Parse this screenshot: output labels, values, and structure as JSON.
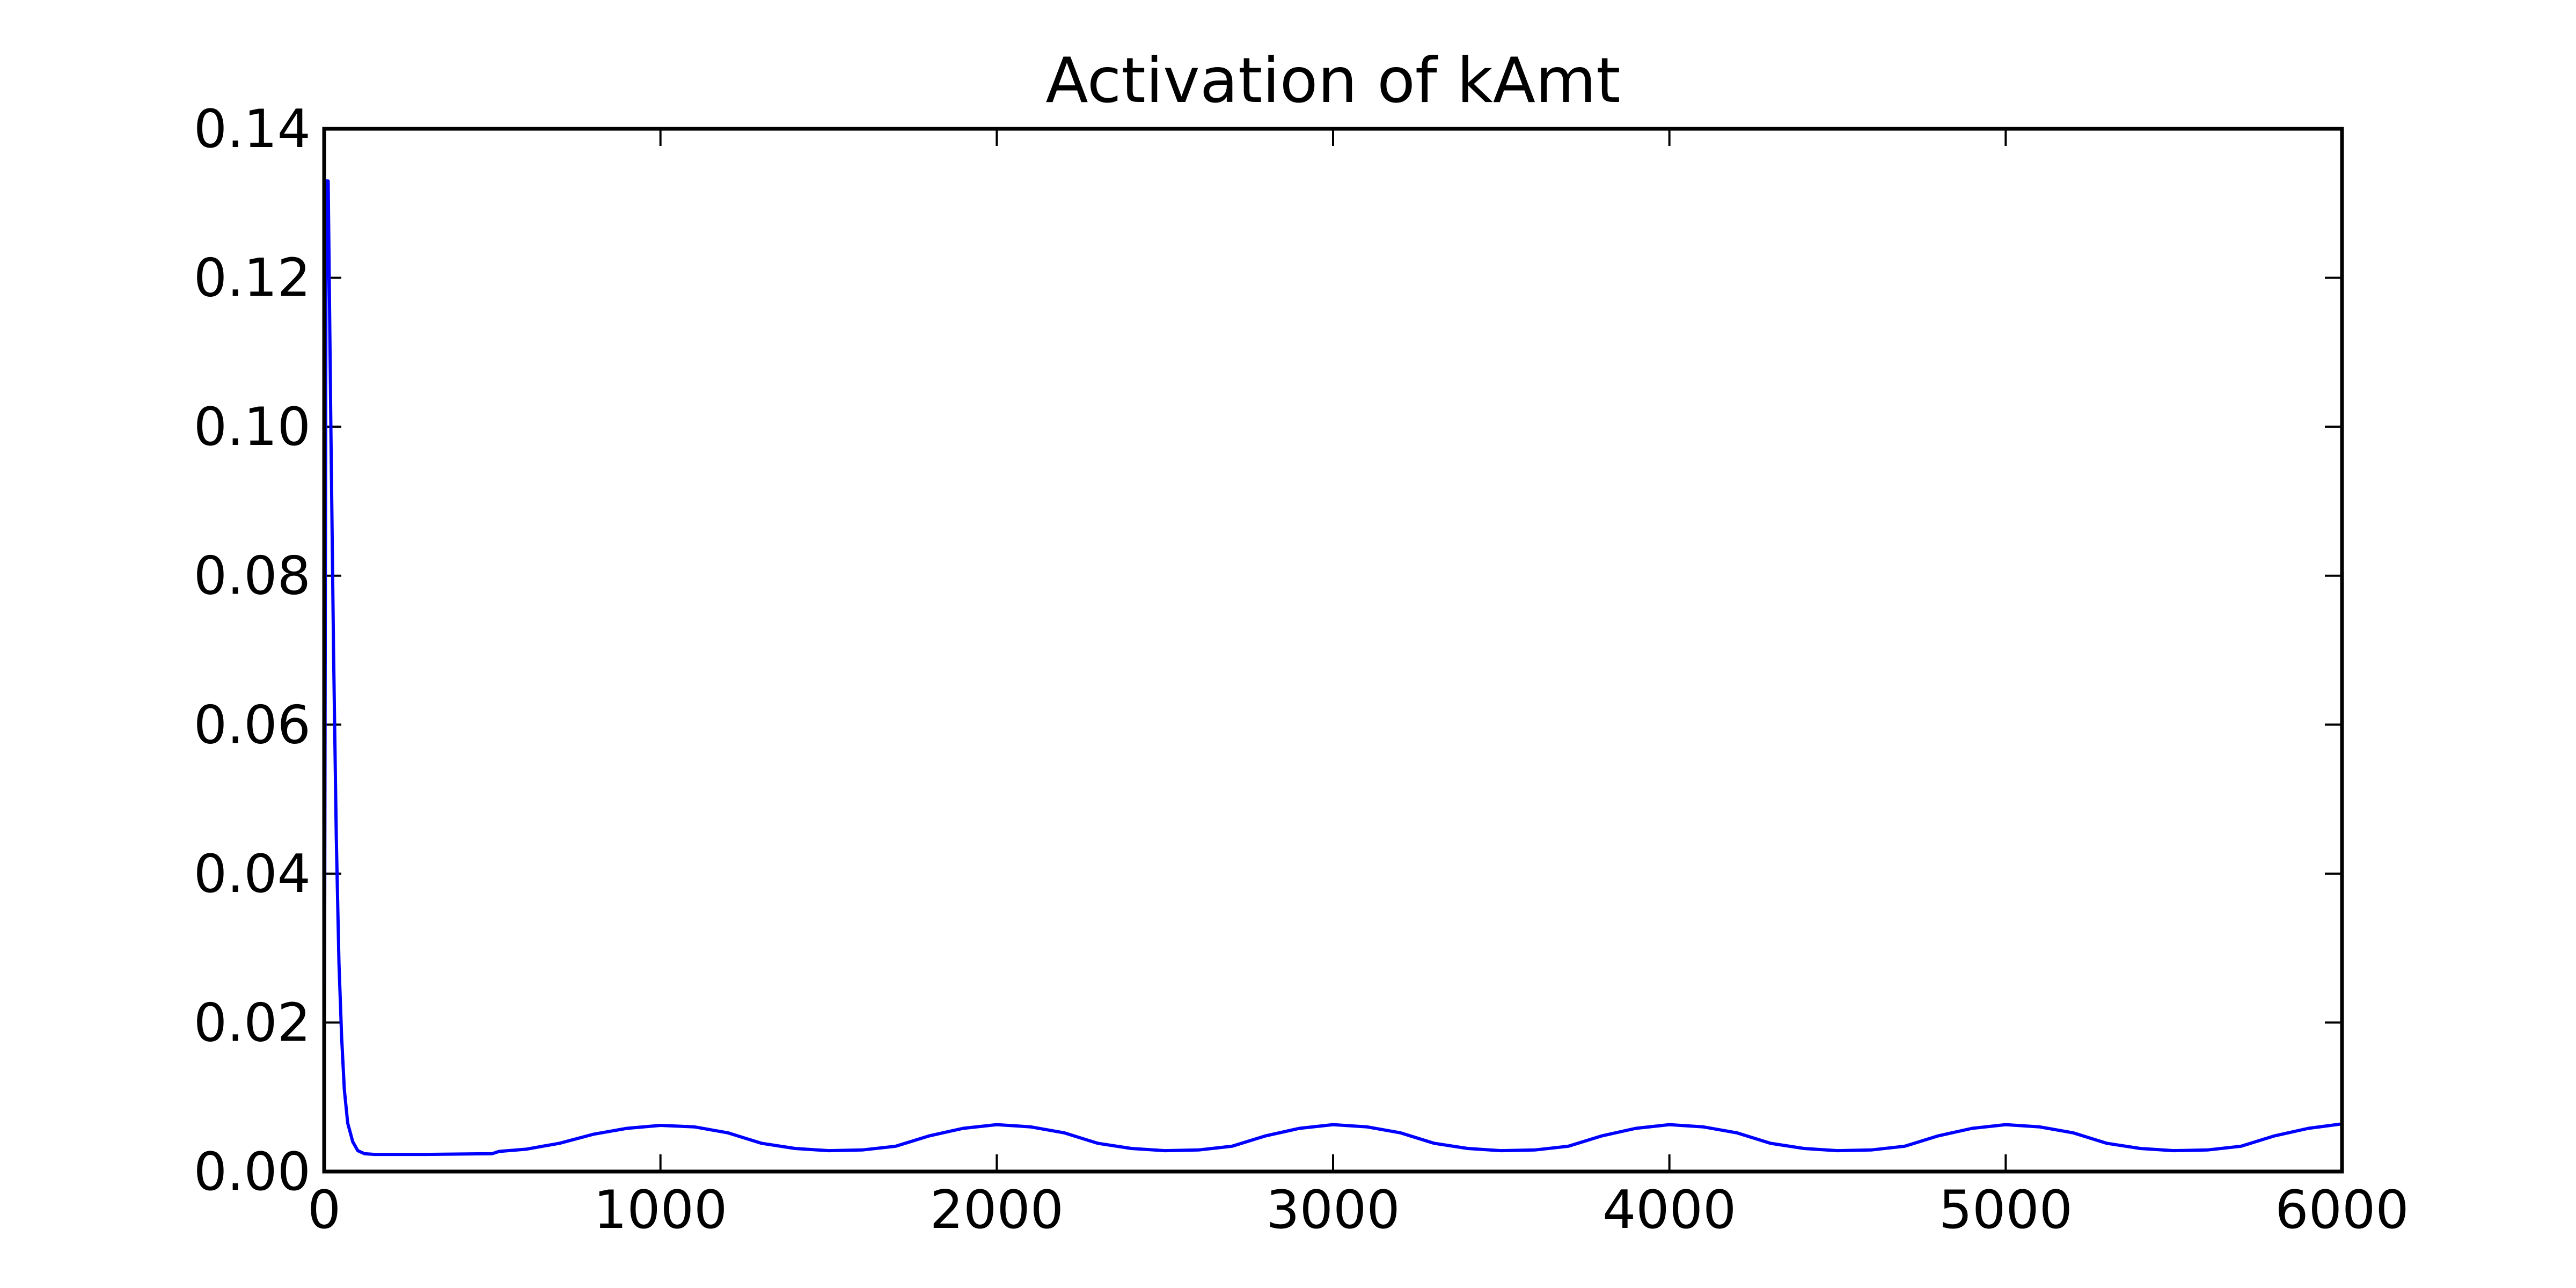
{
  "chart_data": {
    "type": "line",
    "title": "Activation of kAmt",
    "xlabel": "",
    "ylabel": "",
    "xlim": [
      0,
      6000
    ],
    "ylim": [
      0,
      0.14
    ],
    "x_ticks": [
      "0",
      "1000",
      "2000",
      "3000",
      "4000",
      "5000",
      "6000"
    ],
    "y_ticks": [
      "0.00",
      "0.02",
      "0.04",
      "0.06",
      "0.08",
      "0.10",
      "0.12",
      "0.14"
    ],
    "grid": false,
    "legend": "none",
    "series": [
      {
        "color": "#0000ff",
        "points": [
          [
            0,
            0.0
          ],
          [
            6,
            0.133
          ],
          [
            12,
            0.133
          ],
          [
            20,
            0.1
          ],
          [
            28,
            0.07
          ],
          [
            36,
            0.045
          ],
          [
            44,
            0.028
          ],
          [
            52,
            0.018
          ],
          [
            60,
            0.011
          ],
          [
            70,
            0.0065
          ],
          [
            85,
            0.004
          ],
          [
            100,
            0.0028
          ],
          [
            120,
            0.0024
          ],
          [
            150,
            0.0023
          ],
          [
            300,
            0.0023
          ],
          [
            500,
            0.0024
          ],
          [
            520,
            0.0027
          ],
          [
            600,
            0.003
          ],
          [
            700,
            0.0038
          ],
          [
            800,
            0.005
          ],
          [
            900,
            0.0058
          ],
          [
            1000,
            0.0062
          ],
          [
            1100,
            0.006
          ],
          [
            1200,
            0.0052
          ],
          [
            1300,
            0.0038
          ],
          [
            1400,
            0.0031
          ],
          [
            1500,
            0.0028
          ],
          [
            1600,
            0.0029
          ],
          [
            1700,
            0.0034
          ],
          [
            1800,
            0.0048
          ],
          [
            1900,
            0.0058
          ],
          [
            2000,
            0.0063
          ],
          [
            2100,
            0.006
          ],
          [
            2200,
            0.0052
          ],
          [
            2300,
            0.0038
          ],
          [
            2400,
            0.0031
          ],
          [
            2500,
            0.0028
          ],
          [
            2600,
            0.0029
          ],
          [
            2700,
            0.0034
          ],
          [
            2800,
            0.0048
          ],
          [
            2900,
            0.0058
          ],
          [
            3000,
            0.0063
          ],
          [
            3100,
            0.006
          ],
          [
            3200,
            0.0052
          ],
          [
            3300,
            0.0038
          ],
          [
            3400,
            0.0031
          ],
          [
            3500,
            0.0028
          ],
          [
            3600,
            0.0029
          ],
          [
            3700,
            0.0034
          ],
          [
            3800,
            0.0048
          ],
          [
            3900,
            0.0058
          ],
          [
            4000,
            0.0063
          ],
          [
            4100,
            0.006
          ],
          [
            4200,
            0.0052
          ],
          [
            4300,
            0.0038
          ],
          [
            4400,
            0.0031
          ],
          [
            4500,
            0.0028
          ],
          [
            4600,
            0.0029
          ],
          [
            4700,
            0.0034
          ],
          [
            4800,
            0.0048
          ],
          [
            4900,
            0.0058
          ],
          [
            5000,
            0.0063
          ],
          [
            5100,
            0.006
          ],
          [
            5200,
            0.0052
          ],
          [
            5300,
            0.0038
          ],
          [
            5400,
            0.0031
          ],
          [
            5500,
            0.0028
          ],
          [
            5600,
            0.0029
          ],
          [
            5700,
            0.0034
          ],
          [
            5800,
            0.0048
          ],
          [
            5900,
            0.0058
          ],
          [
            6000,
            0.0064
          ]
        ]
      }
    ]
  }
}
